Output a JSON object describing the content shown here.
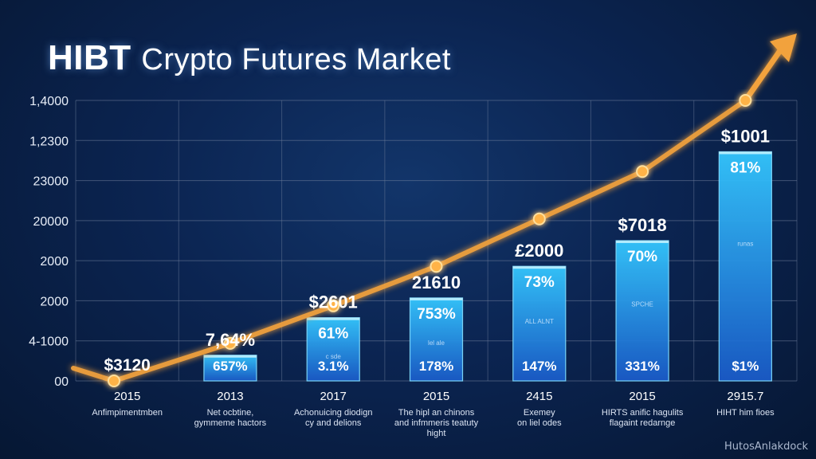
{
  "chart_data": {
    "type": "bar",
    "title_main": "HIBT",
    "title_rest": "Crypto Futures Market",
    "y_tick_labels": [
      "1,4000",
      "1,2300",
      "23000",
      "20000",
      "2000",
      "2000",
      "4-1000",
      "00"
    ],
    "categories": [
      "2015",
      "2013",
      "2017",
      "2015",
      "2415",
      "2015",
      "2915.7"
    ],
    "sublabels": [
      [
        "Anfimpimentmben"
      ],
      [
        "Net ocbtine,",
        "gymmeme hactors"
      ],
      [
        "Achonuicing diodign",
        "cy and delions"
      ],
      [
        "The hipl an chinons",
        "and infmmeris teatuty",
        "hight"
      ],
      [
        "Exemey",
        "on liel odes"
      ],
      [
        "HIRTS anific hagulits",
        "flagaint redarnge"
      ],
      [
        "HIHT him fioes"
      ]
    ],
    "bars": [
      {
        "top_label": "",
        "pct_label": "",
        "bottom_label": "$3120",
        "value": 0,
        "small_text": ""
      },
      {
        "top_label": "7,64%",
        "pct_label": "",
        "bottom_label": "657%",
        "value": 650,
        "small_text": ""
      },
      {
        "top_label": "$2601",
        "pct_label": "61%",
        "bottom_label": "3.1%",
        "value": 1600,
        "small_text": "c sde"
      },
      {
        "top_label": "21610",
        "pct_label": "753%",
        "bottom_label": "178%",
        "value": 2100,
        "small_text": "lel ale"
      },
      {
        "top_label": "£2000",
        "pct_label": "73%",
        "bottom_label": "147%",
        "value": 2900,
        "small_text": "ALL ALNT"
      },
      {
        "top_label": "$7018",
        "pct_label": "70%",
        "bottom_label": "331%",
        "value": 3550,
        "small_text": "SPCHE"
      },
      {
        "top_label": "$1001",
        "pct_label": "81%",
        "bottom_label": "$1%",
        "value": 5800,
        "small_text": "runas"
      }
    ],
    "trend_line": [
      0,
      950,
      1900,
      2900,
      4100,
      5300,
      7100
    ],
    "ylim": [
      0,
      7100
    ],
    "colors": {
      "bar_top": "#35c8ff",
      "bar_bottom": "#1a5bc8",
      "line": "#f2a23c",
      "grid": "#6f7f9c"
    }
  },
  "watermark": "HutosAnlakdock"
}
